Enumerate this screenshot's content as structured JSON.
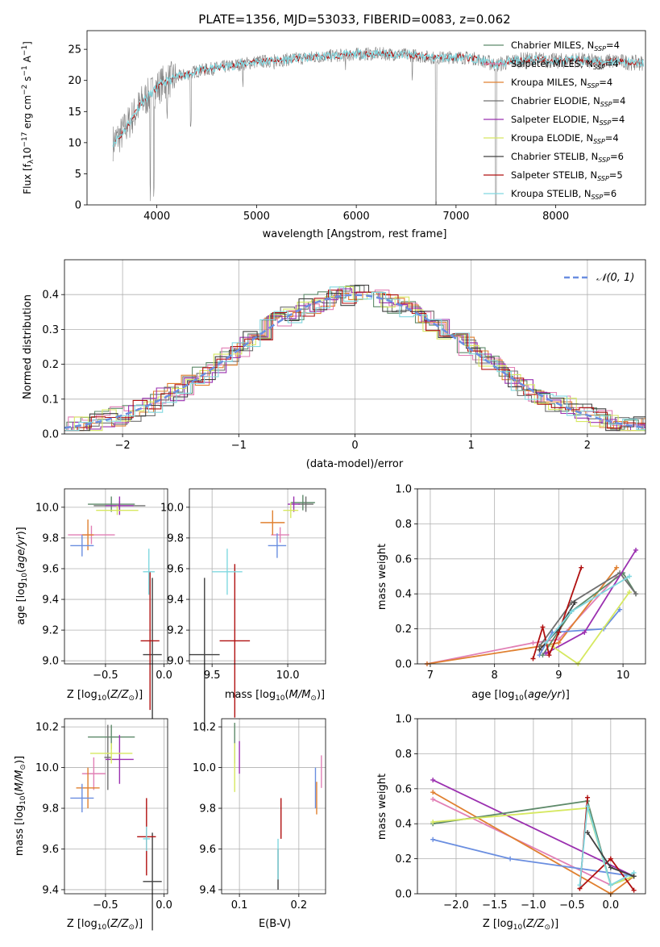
{
  "colors": {
    "chabrier_miles": "#5e8a6a",
    "salpeter_miles": "#e17fb5",
    "kroupa_miles": "#e08030",
    "chabrier_elodie": "#707070",
    "salpeter_elodie": "#9b30b0",
    "kroupa_elodie": "#d6e860",
    "chabrier_stelib": "#404040",
    "salpeter_stelib": "#b01010",
    "kroupa_stelib": "#80d8e0",
    "blue": "#6a8ee0"
  },
  "panel_spectrum": {
    "title": "PLATE=1356, MJD=53033, FIBERID=0083, z=0.062",
    "xlabel": "wavelength [Angstrom, rest frame]",
    "ylabel": "Flux [fλ10⁻¹⁷ erg cm⁻² s⁻¹ A⁻¹]",
    "legend": [
      "Chabrier MILES, N_SSP=4",
      "Salpeter MILES, N_SSP=4",
      "Kroupa MILES, N_SSP=4",
      "Chabrier ELODIE, N_SSP=4",
      "Salpeter ELODIE, N_SSP=4",
      "Kroupa ELODIE, N_SSP=4",
      "Chabrier STELIB, N_SSP=6",
      "Salpeter STELIB, N_SSP=5",
      "Kroupa STELIB, N_SSP=6"
    ]
  },
  "panel_hist": {
    "xlabel": "(data-model)/error",
    "ylabel": "Normed distribution",
    "legend": "𝒩(0, 1)"
  },
  "panel_age_Z": {
    "xlabel": "Z [log10(Z/Z⊙)]",
    "ylabel": "age  [log10(age/yr)]"
  },
  "panel_age_mass": {
    "xlabel": "mass [log10(M/M⊙)]"
  },
  "panel_weight_age": {
    "xlabel": "age  [log10(age/yr)]",
    "ylabel": "mass weight"
  },
  "panel_mass_Z": {
    "xlabel": "Z [log10(Z/Z⊙)]",
    "ylabel": "mass [log10(M/M⊙)]"
  },
  "panel_mass_ebv": {
    "xlabel": "E(B-V)"
  },
  "panel_weight_Z": {
    "xlabel": "Z [log10(Z/Z⊙)]",
    "ylabel": "mass weight"
  },
  "chart_data": [
    {
      "type": "line",
      "title": "PLATE=1356, MJD=53033, FIBERID=0083, z=0.062",
      "xlim": [
        3300,
        8900
      ],
      "ylim": [
        0,
        28
      ],
      "xticks": [
        4000,
        5000,
        6000,
        7000,
        8000
      ],
      "yticks": [
        0,
        5,
        10,
        15,
        20,
        25
      ],
      "spectrum_approx": {
        "x": [
          3560,
          3650,
          3750,
          3850,
          3950,
          4050,
          4200,
          4400,
          4600,
          4800,
          5000,
          5200,
          5400,
          5600,
          5800,
          6000,
          6200,
          6400,
          6600,
          6800,
          7000,
          7200,
          7400,
          7600,
          7800,
          8000,
          8200,
          8400,
          8600,
          8800
        ],
        "y": [
          10,
          11.5,
          14,
          16.5,
          18,
          19.5,
          20.5,
          21.5,
          22,
          22.5,
          23,
          23.2,
          23.5,
          23.8,
          24,
          24.2,
          24.3,
          24.2,
          24,
          23.6,
          23.8,
          23.5,
          22.5,
          23.2,
          23.4,
          23.1,
          23.3,
          23.0,
          23.1,
          22.8
        ]
      }
    },
    {
      "type": "line",
      "xlim": [
        -2.5,
        2.5
      ],
      "ylim": [
        0,
        0.5
      ],
      "xticks": [
        -2,
        -1,
        0,
        1,
        2
      ],
      "yticks": [
        0.0,
        0.1,
        0.2,
        0.3,
        0.4
      ],
      "series": [
        {
          "name": "𝒩(0, 1)",
          "mean": 0,
          "sigma": 1
        }
      ]
    },
    {
      "type": "scatter",
      "xlim": [
        -0.85,
        0.03
      ],
      "ylim": [
        8.98,
        10.12
      ],
      "xticks": [
        -0.5,
        0.0
      ],
      "yticks": [
        9.0,
        9.2,
        9.4,
        9.6,
        9.8,
        10.0
      ],
      "points": [
        {
          "color": "chabrier_miles",
          "x": -0.45,
          "y": 10.02,
          "xerr": 0.2,
          "yerr": 0.05
        },
        {
          "color": "salpeter_miles",
          "x": -0.62,
          "y": 9.82,
          "xerr": 0.2,
          "yerr": 0.06
        },
        {
          "color": "kroupa_miles",
          "x": -0.65,
          "y": 9.82,
          "xerr": 0.05,
          "yerr": 0.1
        },
        {
          "color": "blue",
          "x": -0.7,
          "y": 9.75,
          "xerr": 0.1,
          "yerr": 0.07
        },
        {
          "color": "chabrier_elodie",
          "x": -0.38,
          "y": 10.01,
          "xerr": 0.22,
          "yerr": 0.03
        },
        {
          "color": "salpeter_elodie",
          "x": -0.38,
          "y": 10.01,
          "xerr": 0.12,
          "yerr": 0.06
        },
        {
          "color": "kroupa_elodie",
          "x": -0.4,
          "y": 9.98,
          "xerr": 0.18,
          "yerr": 0.03
        },
        {
          "color": "chabrier_stelib",
          "x": -0.1,
          "y": 9.04,
          "xerr": 0.08,
          "yerr": 0.5
        },
        {
          "color": "salpeter_stelib",
          "x": -0.12,
          "y": 9.13,
          "xerr": 0.08,
          "yerr": 0.45
        },
        {
          "color": "kroupa_stelib",
          "x": -0.13,
          "y": 9.58,
          "xerr": 0.05,
          "yerr": 0.15
        }
      ]
    },
    {
      "type": "scatter",
      "xlim": [
        9.35,
        10.25
      ],
      "ylim": [
        8.98,
        10.12
      ],
      "xticks": [
        9.5,
        10.0
      ],
      "yticks": [
        9.0,
        9.2,
        9.4,
        9.6,
        9.8,
        10.0
      ],
      "points": [
        {
          "color": "chabrier_miles",
          "x": 10.1,
          "y": 10.03,
          "xerr": 0.08,
          "yerr": 0.05
        },
        {
          "color": "salpeter_miles",
          "x": 9.95,
          "y": 9.82,
          "xerr": 0.06,
          "yerr": 0.05
        },
        {
          "color": "kroupa_miles",
          "x": 9.9,
          "y": 9.9,
          "xerr": 0.08,
          "yerr": 0.08
        },
        {
          "color": "blue",
          "x": 9.93,
          "y": 9.75,
          "xerr": 0.06,
          "yerr": 0.08
        },
        {
          "color": "chabrier_elodie",
          "x": 10.12,
          "y": 10.02,
          "xerr": 0.05,
          "yerr": 0.05
        },
        {
          "color": "salpeter_elodie",
          "x": 10.04,
          "y": 10.02,
          "xerr": 0.04,
          "yerr": 0.05
        },
        {
          "color": "kroupa_elodie",
          "x": 10.02,
          "y": 9.98,
          "xerr": 0.05,
          "yerr": 0.05
        },
        {
          "color": "chabrier_stelib",
          "x": 9.45,
          "y": 9.04,
          "xerr": 0.1,
          "yerr": 0.5
        },
        {
          "color": "salpeter_stelib",
          "x": 9.65,
          "y": 9.13,
          "xerr": 0.1,
          "yerr": 0.5
        },
        {
          "color": "kroupa_stelib",
          "x": 9.6,
          "y": 9.58,
          "xerr": 0.1,
          "yerr": 0.15
        }
      ]
    },
    {
      "type": "line",
      "xlim": [
        6.8,
        10.35
      ],
      "ylim": [
        0,
        1.0
      ],
      "xticks": [
        7,
        8,
        9,
        10
      ],
      "yticks": [
        0.0,
        0.2,
        0.4,
        0.6,
        0.8,
        1.0
      ],
      "series": [
        {
          "color": "salpeter_miles",
          "x": [
            6.95,
            8.6,
            9.0,
            9.9
          ],
          "y": [
            0.0,
            0.12,
            0.14,
            0.5
          ]
        },
        {
          "color": "kroupa_miles",
          "x": [
            6.95,
            8.7,
            9.0,
            9.9
          ],
          "y": [
            0.0,
            0.1,
            0.12,
            0.55
          ]
        },
        {
          "color": "blue",
          "x": [
            8.7,
            8.9,
            9.7,
            9.95
          ],
          "y": [
            0.05,
            0.18,
            0.2,
            0.31
          ]
        },
        {
          "color": "chabrier_miles",
          "x": [
            8.75,
            9.2,
            10.0,
            10.2
          ],
          "y": [
            0.05,
            0.3,
            0.52,
            0.4
          ]
        },
        {
          "color": "chabrier_elodie",
          "x": [
            8.7,
            9.2,
            9.95,
            10.2
          ],
          "y": [
            0.1,
            0.35,
            0.52,
            0.4
          ]
        },
        {
          "color": "salpeter_elodie",
          "x": [
            8.8,
            9.4,
            10.2
          ],
          "y": [
            0.06,
            0.18,
            0.65
          ]
        },
        {
          "color": "kroupa_elodie",
          "x": [
            8.9,
            9.3,
            10.1
          ],
          "y": [
            0.1,
            0.0,
            0.41
          ]
        },
        {
          "color": "salpeter_stelib",
          "x": [
            8.6,
            8.75,
            8.85,
            9.0,
            9.35
          ],
          "y": [
            0.03,
            0.21,
            0.05,
            0.18,
            0.55
          ]
        },
        {
          "color": "chabrier_stelib",
          "x": [
            8.7,
            9.0,
            9.25
          ],
          "y": [
            0.08,
            0.2,
            0.35
          ]
        },
        {
          "color": "kroupa_stelib",
          "x": [
            8.8,
            9.2,
            10.1
          ],
          "y": [
            0.12,
            0.3,
            0.5
          ]
        }
      ]
    },
    {
      "type": "scatter",
      "xlim": [
        -0.85,
        0.03
      ],
      "ylim": [
        9.38,
        10.24
      ],
      "xticks": [
        -0.5,
        0.0
      ],
      "yticks": [
        9.4,
        9.6,
        9.8,
        10.0,
        10.2
      ],
      "points": [
        {
          "color": "chabrier_miles",
          "x": -0.45,
          "y": 10.15,
          "xerr": 0.2,
          "yerr": 0.06
        },
        {
          "color": "salpeter_miles",
          "x": -0.6,
          "y": 9.97,
          "xerr": 0.1,
          "yerr": 0.08
        },
        {
          "color": "kroupa_miles",
          "x": -0.65,
          "y": 9.9,
          "xerr": 0.1,
          "yerr": 0.1
        },
        {
          "color": "blue",
          "x": -0.7,
          "y": 9.85,
          "xerr": 0.1,
          "yerr": 0.07
        },
        {
          "color": "chabrier_elodie",
          "x": -0.48,
          "y": 10.05,
          "xerr": 0.03,
          "yerr": 0.16
        },
        {
          "color": "salpeter_elodie",
          "x": -0.38,
          "y": 10.04,
          "xerr": 0.12,
          "yerr": 0.12
        },
        {
          "color": "kroupa_elodie",
          "x": -0.45,
          "y": 10.07,
          "xerr": 0.18,
          "yerr": 0.05
        },
        {
          "color": "chabrier_stelib",
          "x": -0.1,
          "y": 9.44,
          "xerr": 0.08,
          "yerr": 0.24
        },
        {
          "color": "salpeter_stelib",
          "x": -0.15,
          "y": 9.66,
          "xerr": 0.08,
          "yerr": 0.19
        },
        {
          "color": "kroupa_stelib",
          "x": -0.15,
          "y": 9.65,
          "xerr": 0.03,
          "yerr": 0.06
        }
      ]
    },
    {
      "type": "scatter",
      "xlim": [
        0.07,
        0.245
      ],
      "ylim": [
        9.38,
        10.24
      ],
      "xticks": [
        0.1,
        0.2
      ],
      "yticks": [
        9.4,
        9.6,
        9.8,
        10.0,
        10.2
      ],
      "points": [
        {
          "color": "chabrier_miles",
          "x": 0.092,
          "y": 10.12,
          "xerr": 0.0,
          "yerr": 0.1
        },
        {
          "color": "kroupa_elodie",
          "x": 0.092,
          "y": 10.0,
          "xerr": 0.0,
          "yerr": 0.12
        },
        {
          "color": "salpeter_elodie",
          "x": 0.1,
          "y": 10.05,
          "xerr": 0.0,
          "yerr": 0.08
        },
        {
          "color": "chabrier_stelib",
          "x": 0.165,
          "y": 9.5,
          "xerr": 0.0,
          "yerr": 0.1
        },
        {
          "color": "kroupa_stelib",
          "x": 0.165,
          "y": 9.55,
          "xerr": 0.0,
          "yerr": 0.1
        },
        {
          "color": "salpeter_stelib",
          "x": 0.17,
          "y": 9.75,
          "xerr": 0.0,
          "yerr": 0.1
        },
        {
          "color": "blue",
          "x": 0.228,
          "y": 9.9,
          "xerr": 0.0,
          "yerr": 0.1
        },
        {
          "color": "kroupa_miles",
          "x": 0.23,
          "y": 9.85,
          "xerr": 0.0,
          "yerr": 0.08
        },
        {
          "color": "salpeter_miles",
          "x": 0.238,
          "y": 9.98,
          "xerr": 0.0,
          "yerr": 0.08
        }
      ]
    },
    {
      "type": "line",
      "xlim": [
        -2.5,
        0.45
      ],
      "ylim": [
        0,
        1.0
      ],
      "xticks": [
        -2.0,
        -1.5,
        -1.0,
        -0.5,
        0.0
      ],
      "yticks": [
        0.0,
        0.2,
        0.4,
        0.6,
        0.8,
        1.0
      ],
      "series": [
        {
          "color": "salpeter_elodie",
          "x": [
            -2.3,
            0.3
          ],
          "y": [
            0.65,
            0.1
          ]
        },
        {
          "color": "salpeter_miles",
          "x": [
            -2.3,
            0.0,
            0.3
          ],
          "y": [
            0.54,
            0.05,
            0.1
          ]
        },
        {
          "color": "kroupa_miles",
          "x": [
            -2.3,
            0.0,
            0.3
          ],
          "y": [
            0.58,
            0.0,
            0.1
          ]
        },
        {
          "color": "blue",
          "x": [
            -2.3,
            -1.3,
            0.3
          ],
          "y": [
            0.31,
            0.2,
            0.1
          ]
        },
        {
          "color": "chabrier_miles",
          "x": [
            -2.3,
            -0.3,
            0.0,
            0.3
          ],
          "y": [
            0.4,
            0.53,
            0.05,
            0.1
          ]
        },
        {
          "color": "kroupa_elodie",
          "x": [
            -2.3,
            -0.3,
            0.0,
            0.3
          ],
          "y": [
            0.41,
            0.49,
            0.05,
            0.1
          ]
        },
        {
          "color": "salpeter_stelib",
          "x": [
            -0.3,
            -0.4,
            0.0,
            0.3
          ],
          "y": [
            0.55,
            0.03,
            0.2,
            0.02
          ]
        },
        {
          "color": "kroupa_stelib",
          "x": [
            -0.4,
            -0.3,
            0.0,
            0.3
          ],
          "y": [
            0.05,
            0.5,
            0.05,
            0.12
          ]
        },
        {
          "color": "chabrier_stelib",
          "x": [
            -0.3,
            0.0,
            0.3
          ],
          "y": [
            0.35,
            0.15,
            0.1
          ]
        }
      ]
    }
  ]
}
